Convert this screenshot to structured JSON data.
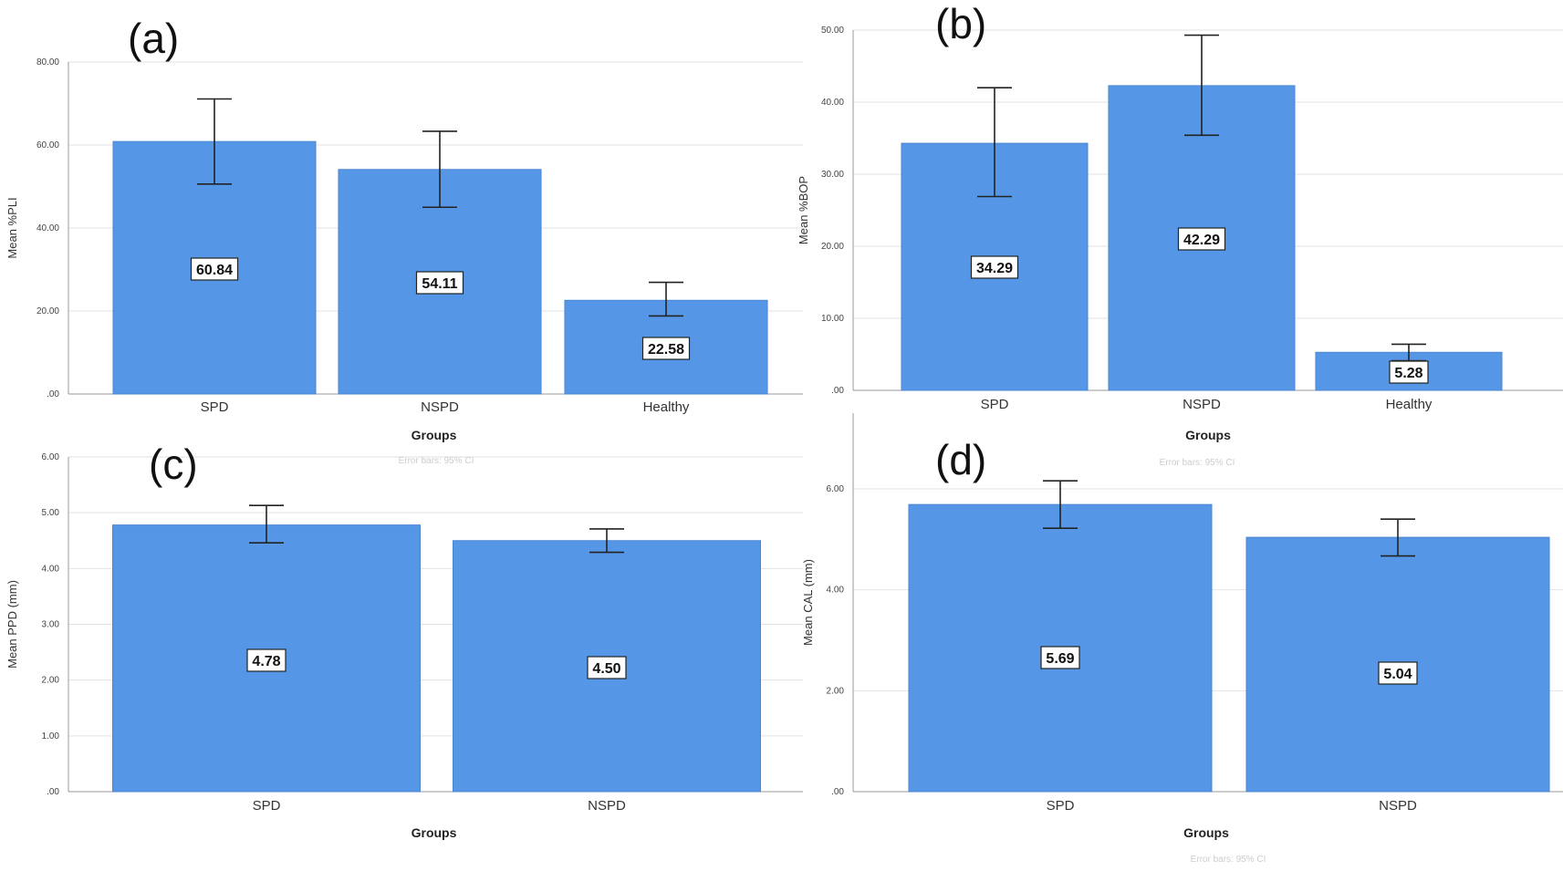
{
  "colors": {
    "bar": "#5597e6",
    "bar_edge": "#4a86d0",
    "grid": "#e2e2e2",
    "axis": "#999999",
    "error": "#222222"
  },
  "chart_data": [
    {
      "type": "bar",
      "panel": "(a)",
      "title": "",
      "xlabel": "Groups",
      "ylabel": "Mean %PLI",
      "categories": [
        "SPD",
        "NSPD",
        "Healthy"
      ],
      "values": [
        60.84,
        54.11,
        22.58
      ],
      "value_labels": [
        "60.84",
        "54.11",
        "22.58"
      ],
      "error_bars": [
        [
          50.6,
          71.1
        ],
        [
          45.0,
          63.3
        ],
        [
          18.8,
          26.9
        ]
      ],
      "error_note": "",
      "ylim": [
        0,
        80
      ],
      "yticks": [
        0,
        20,
        40,
        60,
        80
      ],
      "ytick_labels": [
        ".00",
        "20.00",
        "40.00",
        "60.00",
        "80.00"
      ],
      "grid": true
    },
    {
      "type": "bar",
      "panel": "(b)",
      "title": "",
      "xlabel": "Groups",
      "ylabel": "Mean %BOP",
      "categories": [
        "SPD",
        "NSPD",
        "Healthy"
      ],
      "values": [
        34.29,
        42.29,
        5.28
      ],
      "value_labels": [
        "34.29",
        "42.29",
        "5.28"
      ],
      "error_bars": [
        [
          26.9,
          42.0
        ],
        [
          35.4,
          49.3
        ],
        [
          4.1,
          6.4
        ]
      ],
      "error_note": "Error bars: 95% CI",
      "ylim": [
        0,
        50
      ],
      "yticks": [
        0,
        10,
        20,
        30,
        40,
        50
      ],
      "ytick_labels": [
        ".00",
        "10.00",
        "20.00",
        "30.00",
        "40.00",
        "50.00"
      ],
      "grid": true
    },
    {
      "type": "bar",
      "panel": "(c)",
      "title": "",
      "xlabel": "Groups",
      "ylabel": "Mean PPD (mm)",
      "categories": [
        "SPD",
        "NSPD"
      ],
      "values": [
        4.78,
        4.5
      ],
      "value_labels": [
        "4.78",
        "4.50"
      ],
      "error_bars": [
        [
          4.46,
          5.13
        ],
        [
          4.29,
          4.71
        ]
      ],
      "error_note": "Error bars: 95% CI",
      "ylim": [
        0,
        6
      ],
      "yticks": [
        0,
        1,
        2,
        3,
        4,
        5,
        6
      ],
      "ytick_labels": [
        ".00",
        "1.00",
        "2.00",
        "3.00",
        "4.00",
        "5.00",
        "6.00"
      ],
      "grid": true
    },
    {
      "type": "bar",
      "panel": "(d)",
      "title": "",
      "xlabel": "Groups",
      "ylabel": "Mean CAL (mm)",
      "categories": [
        "SPD",
        "NSPD"
      ],
      "values": [
        5.69,
        5.04
      ],
      "value_labels": [
        "5.69",
        "5.04"
      ],
      "error_bars": [
        [
          5.22,
          6.16
        ],
        [
          4.67,
          5.4
        ]
      ],
      "error_note": "Error bars: 95% CI",
      "ylim": [
        0,
        7.5
      ],
      "yticks": [
        0,
        2,
        4,
        6
      ],
      "ytick_labels": [
        ".00",
        "2.00",
        "4.00",
        "6.00"
      ],
      "grid": true
    }
  ]
}
